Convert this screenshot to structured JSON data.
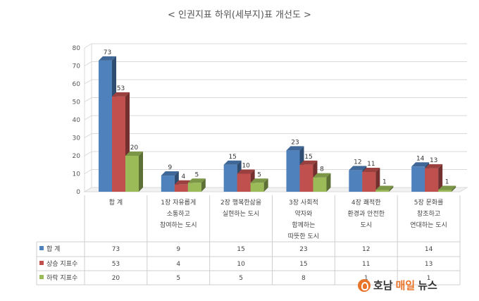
{
  "chart_data": {
    "type": "bar",
    "title": "< 인권지표 하위(세부지)표 개선도 >",
    "ylim": [
      0,
      80
    ],
    "yticks": [
      0,
      10,
      20,
      30,
      40,
      50,
      60,
      70,
      80
    ],
    "grid": true,
    "legend": "table-left",
    "categories": [
      [
        "합    계"
      ],
      [
        "1장 자유롭게",
        "소통하고",
        "참여하는 도시"
      ],
      [
        "2장 행복한삶을",
        "실현하는 도시"
      ],
      [
        "3장 사회적",
        "약자와",
        "함께하는",
        "따뜻한 도시"
      ],
      [
        "4장 쾌적한",
        "환경과 안전한",
        "도시"
      ],
      [
        "5장 문화를",
        "창조하고",
        "연대하는 도시"
      ]
    ],
    "series": [
      {
        "name": "합    계",
        "color": "#4f81bd",
        "values": [
          73,
          9,
          15,
          23,
          12,
          14
        ]
      },
      {
        "name": "상승 지표수",
        "color": "#c0504d",
        "values": [
          53,
          4,
          10,
          15,
          11,
          13
        ]
      },
      {
        "name": "하락 지표수",
        "color": "#9bbb59",
        "values": [
          20,
          5,
          5,
          8,
          1,
          1
        ]
      }
    ]
  },
  "logo": {
    "part1": "호남",
    "part2": "매일",
    "part3": "뉴스"
  }
}
